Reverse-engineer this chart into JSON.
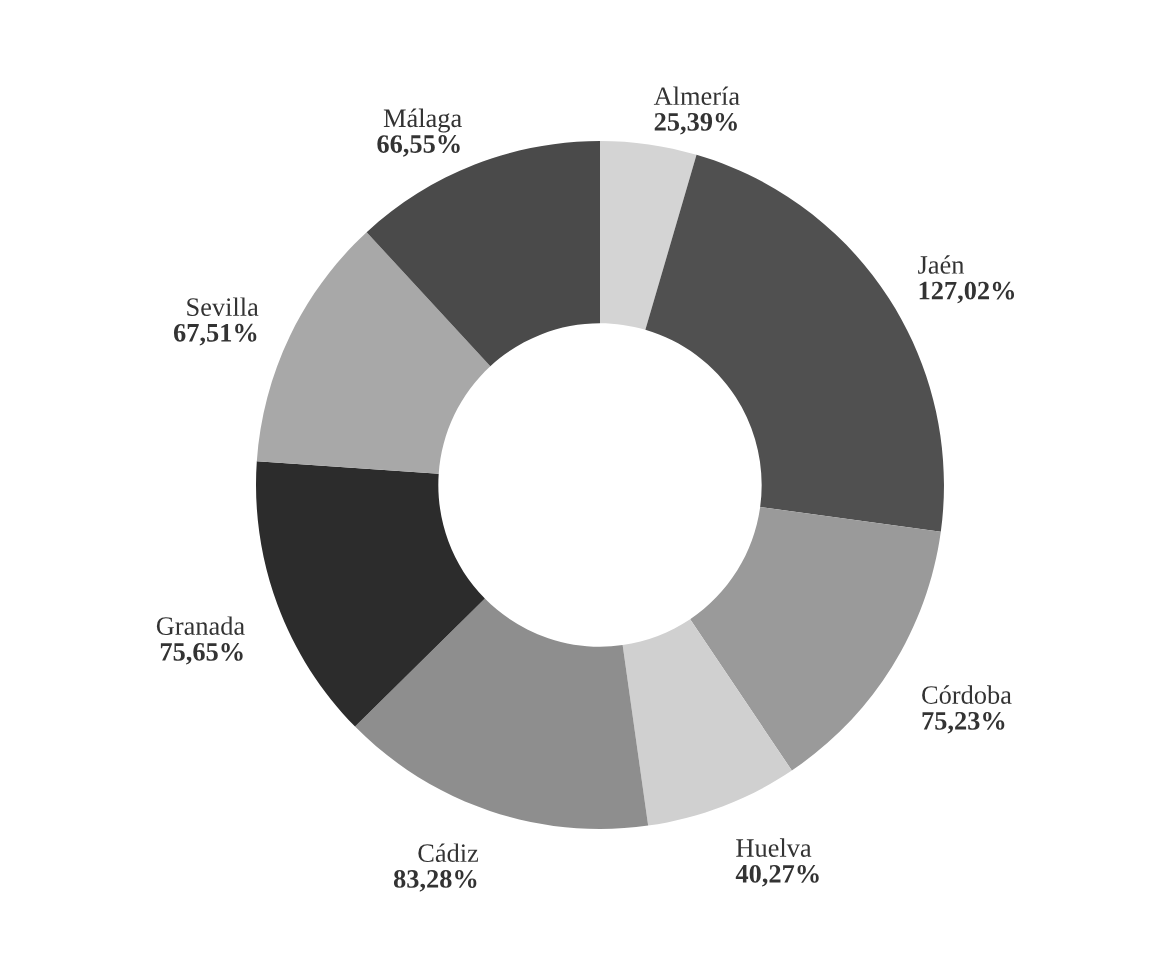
{
  "chart_data": {
    "type": "donut",
    "categories": [
      "Almería",
      "Jaén",
      "Córdoba",
      "Huelva",
      "Cádiz",
      "Granada",
      "Sevilla",
      "Málaga"
    ],
    "values": [
      25.39,
      127.02,
      75.23,
      40.27,
      83.28,
      75.65,
      67.51,
      66.55
    ],
    "value_labels": [
      "25,39%",
      "127,02%",
      "75,23%",
      "40,27%",
      "83,28%",
      "75,65%",
      "67,51%",
      "66,55%"
    ],
    "colors": [
      "#d4d4d4",
      "#505050",
      "#9a9a9a",
      "#d0d0d0",
      "#8e8e8e",
      "#2c2c2c",
      "#a8a8a8",
      "#4a4a4a"
    ],
    "legend": false
  }
}
